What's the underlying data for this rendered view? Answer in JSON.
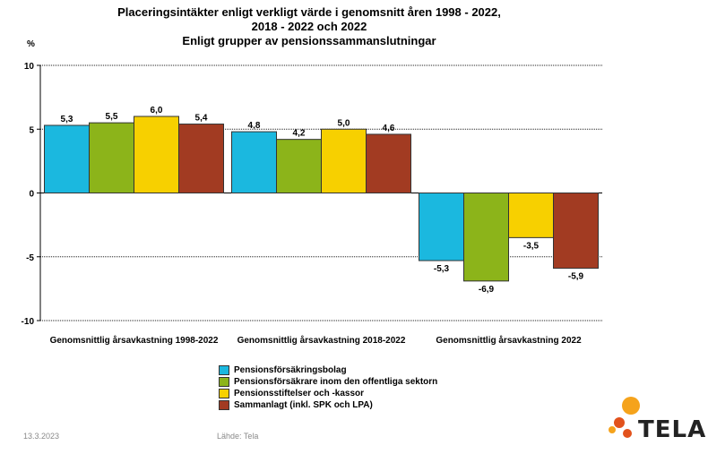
{
  "chart_data": {
    "type": "bar",
    "title_lines": [
      "Placeringsintäkter enligt verkligt värde i genomsnitt åren 1998 - 2022,",
      "2018 - 2022 och 2022",
      "Enligt grupper av pensionssammanslutningar"
    ],
    "ylabel": "%",
    "ylim": [
      -10,
      10
    ],
    "yticks": [
      10,
      5,
      0,
      -5,
      -10
    ],
    "categories": [
      "Genomsnittlig årsavkastning 1998-2022",
      "Genomsnittlig årsavkastning 2018-2022",
      "Genomsnittlig årsavkastning 2022"
    ],
    "series": [
      {
        "name": "Pensionsförsäkringsbolag",
        "color": "#1bb8df",
        "values": [
          5.3,
          4.8,
          -5.3
        ],
        "labels": [
          "5,3",
          "4,8",
          "-5,3"
        ]
      },
      {
        "name": "Pensionsförsäkrare inom den offentliga sektorn",
        "color": "#8cb41a",
        "values": [
          5.5,
          4.2,
          -6.9
        ],
        "labels": [
          "5,5",
          "4,2",
          "-6,9"
        ]
      },
      {
        "name": "Pensionsstiftelser och -kassor",
        "color": "#f7d000",
        "values": [
          6.0,
          5.0,
          -3.5
        ],
        "labels": [
          "6,0",
          "5,0",
          "-3,5"
        ]
      },
      {
        "name": "Sammanlagt (inkl. SPK och LPA)",
        "color": "#a23b22",
        "values": [
          5.4,
          4.6,
          -5.9
        ],
        "labels": [
          "5,4",
          "4,6",
          "-5,9"
        ]
      }
    ],
    "grid": true,
    "legend_position": "bottom"
  },
  "footer": {
    "date": "13.3.2023",
    "source": "Lähde: Tela"
  },
  "logo": {
    "text": "TELA",
    "colors": [
      "#f5a31c",
      "#e2521c"
    ]
  }
}
